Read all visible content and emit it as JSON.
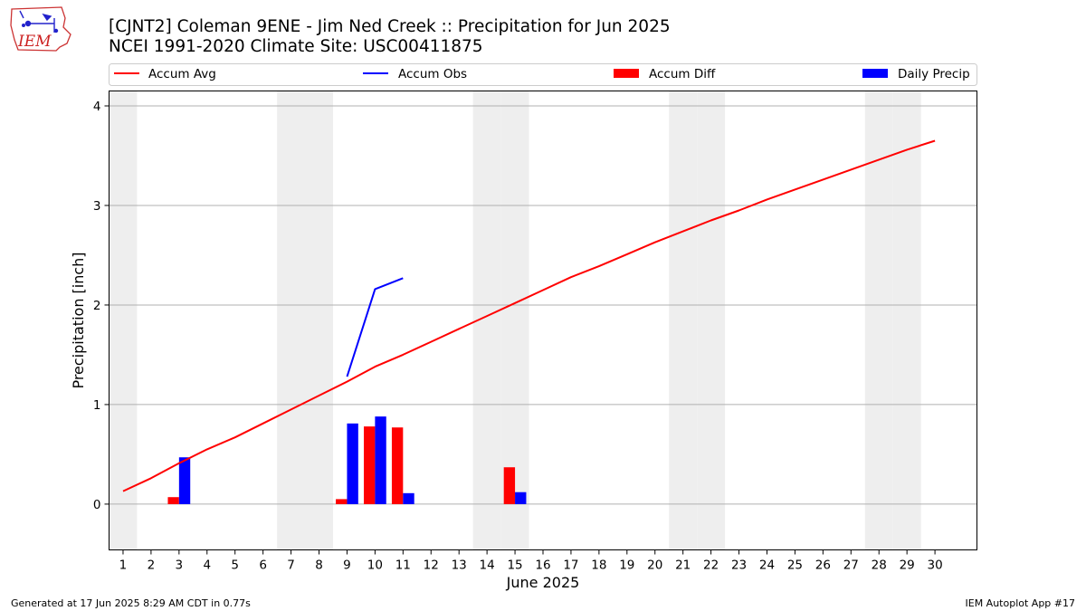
{
  "logo": {
    "text": "IEM"
  },
  "header": {
    "title_line1": "[CJNT2] Coleman 9ENE - Jim Ned Creek :: Precipitation for Jun 2025",
    "title_line2": "NCEI 1991-2020 Climate Site: USC00411875"
  },
  "footer": {
    "left": "Generated at 17 Jun 2025 8:29 AM CDT in 0.77s",
    "right": "IEM Autoplot App #17"
  },
  "colors": {
    "accum_avg": "#ff0000",
    "accum_obs": "#0000ff",
    "accum_diff": "#ff0000",
    "daily_precip": "#0000ff",
    "weekend_band": "#eeeeee",
    "grid": "#b0b0b0"
  },
  "chart_data": {
    "type": "line+bar",
    "xlabel": "June 2025",
    "ylabel": "Precipitation [inch]",
    "xlim": [
      0.5,
      31.5
    ],
    "ylim": [
      -0.46,
      4.15
    ],
    "yticks": [
      0,
      1,
      2,
      3,
      4
    ],
    "xticks": [
      "1",
      "2",
      "3",
      "4",
      "5",
      "6",
      "7",
      "8",
      "9",
      "10",
      "11",
      "12",
      "13",
      "14",
      "15",
      "16",
      "17",
      "18",
      "19",
      "20",
      "21",
      "22",
      "23",
      "24",
      "25",
      "26",
      "27",
      "28",
      "29",
      "30"
    ],
    "grid": "y-major",
    "legend": {
      "placement": "top",
      "entries": [
        "Accum Avg",
        "Accum Obs",
        "Accum Diff",
        "Daily Precip"
      ]
    },
    "weekend_days": [
      1,
      7,
      8,
      14,
      15,
      21,
      22,
      28,
      29
    ],
    "series": [
      {
        "name": "Accum Avg",
        "type": "line",
        "x": [
          1,
          2,
          3,
          4,
          5,
          6,
          7,
          8,
          9,
          10,
          11,
          12,
          13,
          14,
          15,
          16,
          17,
          18,
          19,
          20,
          21,
          22,
          23,
          24,
          25,
          26,
          27,
          28,
          29,
          30
        ],
        "values": [
          0.13,
          0.26,
          0.41,
          0.55,
          0.67,
          0.81,
          0.95,
          1.09,
          1.23,
          1.38,
          1.5,
          1.63,
          1.76,
          1.89,
          2.02,
          2.15,
          2.28,
          2.39,
          2.51,
          2.63,
          2.74,
          2.85,
          2.95,
          3.06,
          3.16,
          3.26,
          3.36,
          3.46,
          3.56,
          3.65
        ]
      },
      {
        "name": "Accum Obs",
        "type": "line",
        "x": [
          9,
          10,
          11
        ],
        "values": [
          1.28,
          2.16,
          2.27
        ]
      },
      {
        "name": "Accum Diff",
        "type": "bar",
        "x": [
          3,
          9,
          10,
          11,
          15
        ],
        "values": [
          0.07,
          0.05,
          0.78,
          0.77,
          0.37
        ]
      },
      {
        "name": "Daily Precip",
        "type": "bar",
        "x": [
          3,
          9,
          10,
          11,
          15
        ],
        "values": [
          0.47,
          0.81,
          0.88,
          0.11,
          0.12
        ]
      }
    ]
  }
}
